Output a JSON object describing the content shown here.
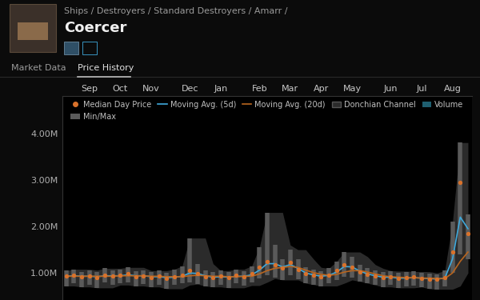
{
  "header": {
    "breadcrumb": "Ships / Destroyers / Standard Destroyers / Amarr /",
    "title": "Coercer",
    "tabs": [
      "Market Data",
      "Price History"
    ]
  },
  "chart_data": {
    "type": "line",
    "categories": [
      null,
      null,
      null,
      "Sep",
      null,
      null,
      null,
      "Oct",
      null,
      null,
      null,
      "Nov",
      null,
      null,
      null,
      null,
      "Dec",
      null,
      null,
      null,
      "Jan",
      null,
      null,
      null,
      null,
      "Feb",
      null,
      null,
      null,
      "Mar",
      null,
      null,
      null,
      "Apr",
      null,
      null,
      null,
      "May",
      null,
      null,
      null,
      null,
      "Jun",
      null,
      null,
      null,
      "Jul",
      null,
      null,
      null,
      "Aug",
      null,
      null
    ],
    "ylim": [
      420000,
      4800000
    ],
    "yticks": [
      {
        "value": 1000000,
        "label": "1.00M"
      },
      {
        "value": 2000000,
        "label": "2.00M"
      },
      {
        "value": 3000000,
        "label": "3.00M"
      },
      {
        "value": 4000000,
        "label": "4.00M"
      }
    ],
    "grid": false,
    "legend": "upper center",
    "series": [
      {
        "name": "Median Day Price",
        "type": "scatter",
        "marker": "o",
        "color": "#d9722b",
        "values": [
          930000,
          950000,
          920000,
          940000,
          900000,
          960000,
          930000,
          950000,
          980000,
          920000,
          940000,
          900000,
          930000,
          880000,
          920000,
          950000,
          1050000,
          980000,
          920000,
          900000,
          930000,
          900000,
          950000,
          920000,
          980000,
          1120000,
          1250000,
          1180000,
          1100000,
          1220000,
          1080000,
          980000,
          950000,
          920000,
          960000,
          1050000,
          1180000,
          1120000,
          1020000,
          970000,
          930000,
          900000,
          920000,
          880000,
          900000,
          910000,
          890000,
          870000,
          860000,
          900000,
          1450000,
          2950000,
          1850000
        ]
      },
      {
        "name": "Min/Max",
        "type": "range",
        "color": "#5a5a5a",
        "high": [
          1050000,
          1080000,
          1020000,
          1060000,
          1020000,
          1100000,
          1050000,
          1080000,
          1120000,
          1040000,
          1050000,
          1020000,
          1050000,
          1000000,
          1080000,
          1150000,
          1750000,
          1200000,
          1050000,
          1020000,
          1050000,
          1020000,
          1080000,
          1040000,
          1150000,
          1550000,
          2300000,
          1600000,
          1300000,
          1500000,
          1300000,
          1120000,
          1080000,
          1040000,
          1100000,
          1250000,
          1450000,
          1350000,
          1180000,
          1100000,
          1050000,
          1020000,
          1040000,
          1000000,
          1020000,
          1030000,
          1000000,
          980000,
          970000,
          1050000,
          2100000,
          3800000,
          2250000
        ],
        "low": [
          720000,
          780000,
          700000,
          750000,
          680000,
          800000,
          740000,
          780000,
          800000,
          720000,
          760000,
          700000,
          750000,
          660000,
          740000,
          780000,
          800000,
          760000,
          720000,
          700000,
          740000,
          680000,
          780000,
          730000,
          800000,
          880000,
          950000,
          900000,
          850000,
          950000,
          860000,
          780000,
          750000,
          720000,
          780000,
          850000,
          920000,
          900000,
          820000,
          780000,
          740000,
          700000,
          740000,
          680000,
          720000,
          730000,
          700000,
          660000,
          650000,
          720000,
          1000000,
          1400000,
          1300000
        ]
      },
      {
        "name": "Moving Avg. (5d)",
        "type": "line",
        "line_style": "solid",
        "color": "#3fa9dc",
        "values": [
          930000,
          940000,
          930000,
          930000,
          920000,
          940000,
          940000,
          940000,
          960000,
          940000,
          940000,
          920000,
          920000,
          900000,
          910000,
          930000,
          1000000,
          990000,
          940000,
          910000,
          920000,
          910000,
          930000,
          930000,
          960000,
          1060000,
          1200000,
          1200000,
          1130000,
          1180000,
          1100000,
          1000000,
          960000,
          930000,
          950000,
          1020000,
          1140000,
          1130000,
          1040000,
          980000,
          940000,
          910000,
          910000,
          890000,
          890000,
          900000,
          890000,
          880000,
          870000,
          890000,
          1300000,
          2200000,
          1950000
        ]
      },
      {
        "name": "Moving Avg. (20d)",
        "type": "line",
        "line_style": "solid",
        "color": "#b8651f",
        "values": [
          930000,
          930000,
          930000,
          930000,
          930000,
          930000,
          930000,
          940000,
          940000,
          940000,
          940000,
          930000,
          930000,
          920000,
          920000,
          920000,
          940000,
          950000,
          940000,
          930000,
          930000,
          920000,
          920000,
          930000,
          930000,
          980000,
          1050000,
          1100000,
          1120000,
          1140000,
          1120000,
          1060000,
          1010000,
          970000,
          950000,
          970000,
          1020000,
          1050000,
          1050000,
          1020000,
          980000,
          940000,
          920000,
          910000,
          900000,
          900000,
          890000,
          890000,
          880000,
          880000,
          1000000,
          1250000,
          1450000
        ]
      },
      {
        "name": "Donchian Channel",
        "type": "band",
        "color": "#2b2b2b",
        "high": [
          1050000,
          1080000,
          1080000,
          1080000,
          1060000,
          1100000,
          1100000,
          1100000,
          1120000,
          1120000,
          1120000,
          1050000,
          1050000,
          1050000,
          1080000,
          1150000,
          1750000,
          1750000,
          1750000,
          1200000,
          1050000,
          1050000,
          1080000,
          1080000,
          1150000,
          1550000,
          2300000,
          2300000,
          2300000,
          1600000,
          1500000,
          1500000,
          1300000,
          1120000,
          1100000,
          1250000,
          1450000,
          1450000,
          1450000,
          1350000,
          1180000,
          1100000,
          1050000,
          1040000,
          1040000,
          1030000,
          1030000,
          1030000,
          1000000,
          1050000,
          2100000,
          3800000,
          3800000
        ],
        "low": [
          720000,
          720000,
          700000,
          700000,
          680000,
          680000,
          680000,
          740000,
          740000,
          720000,
          720000,
          700000,
          700000,
          660000,
          660000,
          660000,
          740000,
          760000,
          720000,
          700000,
          700000,
          680000,
          680000,
          680000,
          730000,
          730000,
          800000,
          880000,
          850000,
          850000,
          850000,
          780000,
          750000,
          720000,
          720000,
          720000,
          780000,
          850000,
          820000,
          780000,
          740000,
          700000,
          700000,
          680000,
          680000,
          680000,
          700000,
          660000,
          650000,
          650000,
          650000,
          720000,
          1000000
        ]
      },
      {
        "name": "Volume",
        "type": "bar",
        "color": "#1f5f70",
        "values": [
          null,
          null,
          null,
          null,
          null,
          null,
          null,
          null,
          null,
          null,
          null,
          null,
          null,
          null,
          null,
          null,
          null,
          null,
          null,
          null,
          null,
          null,
          null,
          null,
          null,
          null,
          null,
          null,
          null,
          null,
          null,
          null,
          null,
          null,
          null,
          null,
          null,
          null,
          null,
          null,
          null,
          null,
          null,
          null,
          null,
          null,
          null,
          null,
          null,
          null,
          null,
          null,
          null
        ]
      }
    ]
  }
}
